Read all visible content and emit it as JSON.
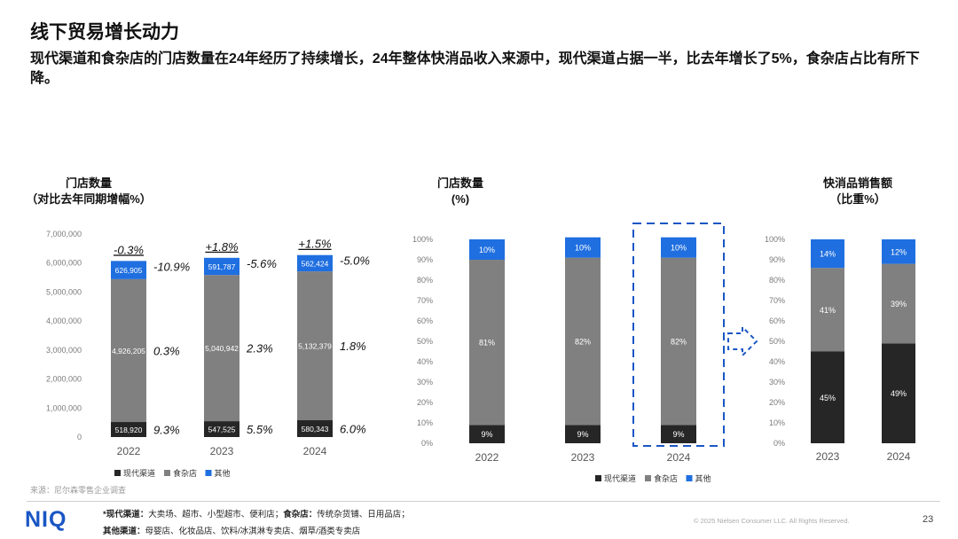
{
  "page": {
    "title": "线下贸易增长动力",
    "subtitle": "现代渠道和食杂店的门店数量在24年经历了持续增长，24年整体快消品收入来源中，现代渠道占据一半，比去年增长了5%，食杂店占比有所下降。",
    "source": "来源：尼尔森零售企业调查",
    "footnote1_head1": "*现代渠道：",
    "footnote1_text1": "大卖场、超市、小型超市、便利店；",
    "footnote1_head2": "食杂店：",
    "footnote1_text2": "传统杂货铺、日用品店；",
    "footnote2_head": "其他渠道：",
    "footnote2_text": "母婴店、化妆品店、饮料/冰淇淋专卖店、烟草/酒类专卖店",
    "logo": "NIQ",
    "copyright": "© 2025 Nielsen Consumer LLC. All Rights Reserved.",
    "page_number": "23"
  },
  "colors": {
    "modern": "#262626",
    "grocery": "#808080",
    "other": "#1f6fe0",
    "accent": "#1a56c4"
  },
  "chart_data": [
    {
      "type": "bar",
      "stacked": true,
      "title_line1": "门店数量",
      "title_line2": "（对比去年同期增幅%）",
      "categories": [
        "2022",
        "2023",
        "2024"
      ],
      "ylim": [
        0,
        7000000
      ],
      "yticks": [
        "0",
        "1,000,000",
        "2,000,000",
        "3,000,000",
        "4,000,000",
        "5,000,000",
        "6,000,000",
        "7,000,000"
      ],
      "series": [
        {
          "name": "现代渠道",
          "key": "modern",
          "values": [
            518920,
            547525,
            580343
          ],
          "labels": [
            "518,920",
            "547,525",
            "580,343"
          ],
          "growth": [
            "9.3%",
            "5.5%",
            "6.0%"
          ]
        },
        {
          "name": "食杂店",
          "key": "grocery",
          "values": [
            4926205,
            5040942,
            5132379
          ],
          "labels": [
            "4,926,205",
            "5,040,942",
            "5,132,379"
          ],
          "growth": [
            "0.3%",
            "2.3%",
            "1.8%"
          ]
        },
        {
          "name": "其他",
          "key": "other",
          "values": [
            626905,
            591787,
            562424
          ],
          "labels": [
            "626,905",
            "591,787",
            "562,424"
          ],
          "growth": [
            "-10.9%",
            "-5.6%",
            "-5.0%"
          ]
        }
      ],
      "total_growth": [
        "-0.3%",
        "+1.8%",
        "+1.5%"
      ],
      "legend": "bottom"
    },
    {
      "type": "bar",
      "stacked": true,
      "percent": true,
      "title_line1": "门店数量",
      "title_line2": "(%)",
      "categories": [
        "2022",
        "2023",
        "2024"
      ],
      "ylim": [
        0,
        100
      ],
      "yticks": [
        "0%",
        "10%",
        "20%",
        "30%",
        "40%",
        "50%",
        "60%",
        "70%",
        "80%",
        "90%",
        "100%"
      ],
      "series": [
        {
          "name": "现代渠道",
          "key": "modern",
          "values": [
            9,
            9,
            9
          ],
          "labels": [
            "9%",
            "9%",
            "9%"
          ]
        },
        {
          "name": "食杂店",
          "key": "grocery",
          "values": [
            81,
            82,
            82
          ],
          "labels": [
            "81%",
            "82%",
            "82%"
          ]
        },
        {
          "name": "其他",
          "key": "other",
          "values": [
            10,
            10,
            10
          ],
          "labels": [
            "10%",
            "10%",
            "10%"
          ]
        }
      ],
      "highlight": "2024",
      "legend": "bottom"
    },
    {
      "type": "bar",
      "stacked": true,
      "percent": true,
      "title_line1": "快消品销售额",
      "title_line2": "（比重%）",
      "categories": [
        "2023",
        "2024"
      ],
      "ylim": [
        0,
        100
      ],
      "yticks": [
        "0%",
        "10%",
        "20%",
        "30%",
        "40%",
        "50%",
        "60%",
        "70%",
        "80%",
        "90%",
        "100%"
      ],
      "series": [
        {
          "name": "现代渠道",
          "key": "modern",
          "values": [
            45,
            49
          ],
          "labels": [
            "45%",
            "49%"
          ]
        },
        {
          "name": "食杂店",
          "key": "grocery",
          "values": [
            41,
            39
          ],
          "labels": [
            "41%",
            "39%"
          ]
        },
        {
          "name": "其他",
          "key": "other",
          "values": [
            14,
            12
          ],
          "labels": [
            "14%",
            "12%"
          ]
        }
      ],
      "legend": "none"
    }
  ]
}
